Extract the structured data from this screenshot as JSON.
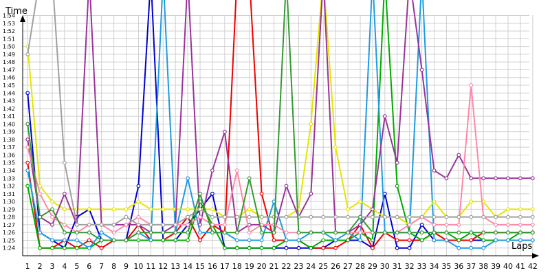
{
  "chart_data": {
    "type": "line",
    "ylabel": "Time",
    "xlabel": "Laps",
    "x": [
      1,
      2,
      3,
      4,
      5,
      6,
      7,
      8,
      9,
      10,
      11,
      12,
      13,
      14,
      15,
      16,
      17,
      18,
      19,
      20,
      21,
      22,
      23,
      24,
      25,
      26,
      27,
      28,
      29,
      30,
      31,
      32,
      33,
      34,
      35,
      36,
      37,
      38,
      39,
      40,
      41,
      42
    ],
    "xlim": [
      0.6,
      42.4
    ],
    "ylim": [
      "1:23",
      "1:56"
    ],
    "y_tick_labels": [
      "1:24",
      "1:25",
      "1:26",
      "1:27",
      "1:28",
      "1:29",
      "1:30",
      "1:31",
      "1:32",
      "1:33",
      "1:34",
      "1:35",
      "1:36",
      "1:37",
      "1:38",
      "1:39",
      "1:40",
      "1:41",
      "1:42",
      "1:43",
      "1:44",
      "1:45",
      "1:46",
      "1:47",
      "1:48",
      "1:49",
      "1:50",
      "1:51",
      "1:52",
      "1:53",
      "1:54"
    ],
    "grid": true,
    "series": [
      {
        "color": "#0000cc",
        "values": [
          "1:44",
          "1:26",
          "1:25",
          "1:24",
          "1:28",
          "1:29",
          "1:25",
          "1:25",
          "1:25",
          "1:32",
          "1:59",
          "1:25",
          "1:25",
          "1:27",
          "1:29",
          "1:31",
          "1:24",
          "1:24",
          "1:24",
          "1:24",
          "1:24",
          "1:24",
          "1:24",
          "1:24",
          "1:24",
          "1:25",
          "1:25",
          "1:25",
          "1:24",
          "1:31",
          "1:24",
          "1:24",
          "1:27",
          "1:25",
          "1:25",
          "1:25",
          "1:25",
          "1:25",
          "1:25",
          "1:25",
          "1:25",
          "1:25"
        ]
      },
      {
        "color": "#ee0000",
        "values": [
          "1:35",
          "1:24",
          "1:24",
          "1:25",
          "1:24",
          "1:25",
          "1:24",
          "1:25",
          "1:25",
          "1:27",
          "1:25",
          "1:25",
          "1:26",
          "1:28",
          "1:25",
          "1:27",
          "1:26",
          "1:59",
          "1:59",
          "1:31",
          "1:25",
          "1:25",
          "1:25",
          "1:24",
          "1:24",
          "1:24",
          "1:25",
          "1:27",
          "1:24",
          "1:26",
          "1:25",
          "1:25",
          "1:25",
          "1:26",
          "1:25",
          "1:25",
          "1:25",
          "1:26",
          "1:26",
          "1:26",
          "1:26",
          "1:26"
        ]
      },
      {
        "color": "#00aa00",
        "values": [
          "1:32",
          "1:24",
          "1:24",
          "1:24",
          "1:24",
          "1:24",
          "1:25",
          "1:25",
          "1:25",
          "1:25",
          "1:25",
          "1:25",
          "1:25",
          "1:25",
          "1:30",
          "1:27",
          "1:24",
          "1:24",
          "1:24",
          "1:24",
          "1:24",
          "1:25",
          "1:25",
          "1:24",
          "1:25",
          "1:25",
          "1:25",
          "1:26",
          "1:25",
          "1:59",
          "1:32",
          "1:26",
          "1:25",
          "1:26",
          "1:26",
          "1:25",
          "1:26",
          "1:25",
          "1:25",
          "1:25",
          "1:26",
          "1:26"
        ]
      },
      {
        "color": "#1e9be0",
        "values": [
          "1:34",
          "1:26",
          "1:25",
          "1:25",
          "1:25",
          "1:24",
          "1:26",
          "1:25",
          "1:25",
          "1:26",
          "1:25",
          "1:59",
          "1:26",
          "1:33",
          "1:26",
          "1:26",
          "1:26",
          "1:25",
          "1:25",
          "1:25",
          "1:30",
          "1:25",
          "1:25",
          "1:26",
          "1:26",
          "1:25",
          "1:26",
          "1:25",
          "1:59",
          "1:26",
          "1:26",
          "1:26",
          "1:59",
          "1:25",
          "1:25",
          "1:24",
          "1:24",
          "1:24",
          "1:25",
          "1:25",
          "1:25",
          "1:25"
        ]
      },
      {
        "color": "#e5e500",
        "values": [
          "1:50",
          "1:32",
          "1:30",
          "1:29",
          "1:29",
          "1:29",
          "1:29",
          "1:29",
          "1:29",
          "1:30",
          "1:29",
          "1:29",
          "1:29",
          "1:29",
          "1:29",
          "1:29",
          "1:28",
          "1:28",
          "1:29",
          "1:28",
          "1:28",
          "1:28",
          "1:29",
          "1:40",
          "1:59",
          "1:37",
          "1:29",
          "1:30",
          "1:29",
          "1:28",
          "1:28",
          "1:27",
          "1:28",
          "1:30",
          "1:28",
          "1:28",
          "1:30",
          "1:30",
          "1:28",
          "1:29",
          "1:29",
          "1:29"
        ]
      },
      {
        "color": "#993399",
        "values": [
          "1:38",
          "1:28",
          "1:27",
          "1:31",
          "1:27",
          "1:59",
          "1:27",
          "1:27",
          "1:27",
          "1:27",
          "1:26",
          "1:26",
          "1:27",
          "1:59",
          "1:27",
          "1:34",
          "1:39",
          "1:26",
          "1:27",
          "1:27",
          "1:26",
          "1:32",
          "1:28",
          "1:31",
          "1:59",
          "1:26",
          "1:26",
          "1:27",
          "1:29",
          "1:41",
          "1:35",
          "1:59",
          "1:47",
          "1:34",
          "1:33",
          "1:36",
          "1:33",
          "1:33",
          "1:33",
          "1:33",
          "1:33",
          "1:33"
        ]
      },
      {
        "color": "#ff88aa",
        "values": [
          "1:37",
          "1:31",
          "1:28",
          "1:27",
          "1:26",
          "1:27",
          "1:27",
          "1:26",
          "1:27",
          "1:28",
          "1:27",
          "1:27",
          "1:27",
          "1:27",
          "1:28",
          "1:27",
          "1:27",
          "1:34",
          "1:26",
          "1:27",
          "1:27",
          "1:26",
          "1:26",
          "1:26",
          "1:26",
          "1:26",
          "1:26",
          "1:26",
          "1:26",
          "1:26",
          "1:26",
          "1:27",
          "1:28",
          "1:27",
          "1:27",
          "1:27",
          "1:45",
          "1:28",
          "1:27",
          "1:27",
          "1:27",
          "1:27"
        ]
      },
      {
        "color": "#a0a0a0",
        "values": [
          "1:49",
          "1:59",
          "1:59",
          "1:35",
          "1:27",
          "1:27",
          "1:27",
          "1:27",
          "1:28",
          "1:27",
          "1:27",
          "1:27",
          "1:27",
          "1:28",
          "1:29",
          "1:28",
          "1:28",
          "1:28",
          "1:28",
          "1:28",
          "1:28",
          "1:28",
          "1:28",
          "1:28",
          "1:28",
          "1:28",
          "1:28",
          "1:28",
          "1:28",
          "1:28",
          "1:28",
          "1:28",
          "1:28",
          "1:28",
          "1:28",
          "1:28",
          "1:28",
          "1:28",
          "1:28",
          "1:28",
          "1:28",
          "1:28"
        ]
      },
      {
        "color": "#339933",
        "values": [
          "1:40",
          "1:28",
          "1:29",
          "1:26",
          "1:26",
          "1:26",
          "1:25",
          "1:25",
          "1:25",
          "1:26",
          "1:26",
          "1:26",
          "1:26",
          "1:26",
          "1:31",
          "1:26",
          "1:26",
          "1:26",
          "1:33",
          "1:26",
          "1:26",
          "1:59",
          "1:26",
          "1:26",
          "1:26",
          "1:26",
          "1:26",
          "1:28",
          "1:26",
          "1:26",
          "1:26",
          "1:26",
          "1:26",
          "1:26",
          "1:26",
          "1:26",
          "1:26",
          "1:26",
          "1:26",
          "1:26",
          "1:26",
          "1:26"
        ]
      }
    ]
  }
}
